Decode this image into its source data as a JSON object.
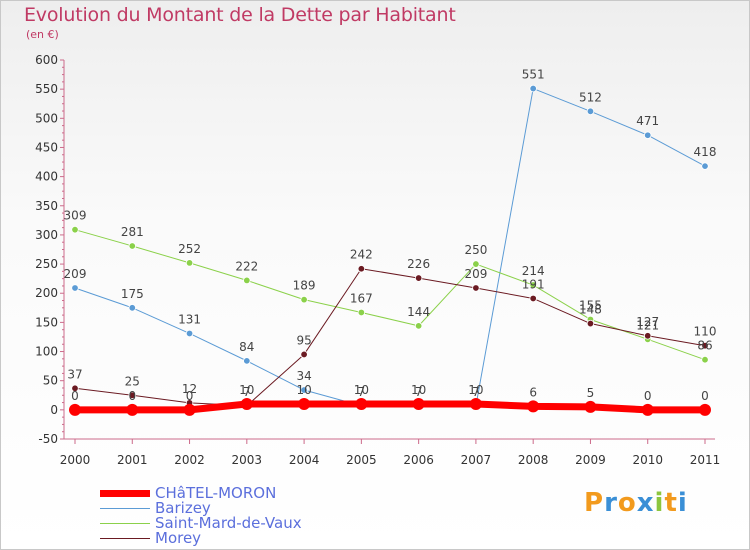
{
  "header": {
    "title": "Evolution du Montant de la Dette par Habitant",
    "unit": "(en €)"
  },
  "logo": {
    "letters": [
      "P",
      "r",
      "o",
      "x",
      "i",
      "t",
      "i"
    ],
    "colors": [
      "#f29a1d",
      "#3a8fd6",
      "#f29a1d",
      "#3a8fd6",
      "#8cc63f",
      "#f29a1d",
      "#3a8fd6"
    ]
  },
  "chart_data": {
    "type": "line",
    "x": [
      "2000",
      "2001",
      "2002",
      "2003",
      "2004",
      "2005",
      "2006",
      "2007",
      "2008",
      "2009",
      "2010",
      "2011"
    ],
    "ylim": [
      -50,
      600
    ],
    "yticks": [
      "600",
      "550",
      "500",
      "450",
      "400",
      "350",
      "300",
      "250",
      "200",
      "150",
      "100",
      "50",
      "0",
      "-50"
    ],
    "grid": false,
    "legend_position": "bottom-left",
    "series": [
      {
        "name": "CHâTEL-MORON",
        "color": "#ff0000",
        "width": 7,
        "values": [
          0,
          0,
          0,
          10,
          10,
          10,
          10,
          10,
          6,
          5,
          0,
          0
        ],
        "labels": [
          "0",
          "0",
          "0",
          "10",
          "10",
          "10",
          "10",
          "10",
          "6",
          "5",
          "0",
          "0"
        ]
      },
      {
        "name": "Barizey",
        "color": "#5b9bd5",
        "width": 1,
        "values": [
          209,
          175,
          131,
          84,
          34,
          7,
          7,
          7,
          551,
          512,
          471,
          418
        ],
        "labels": [
          "209",
          "175",
          "131",
          "84",
          "34",
          "7",
          "7",
          "7",
          "551",
          "512",
          "471",
          "418"
        ]
      },
      {
        "name": "Saint-Mard-de-Vaux",
        "color": "#8bd14a",
        "width": 1,
        "values": [
          309,
          281,
          252,
          222,
          189,
          167,
          144,
          250,
          214,
          155,
          121,
          86
        ],
        "labels": [
          "309",
          "281",
          "252",
          "222",
          "189",
          "167",
          "144",
          "250",
          "214",
          "155",
          "121",
          "86"
        ]
      },
      {
        "name": "Morey",
        "color": "#6b1a22",
        "width": 1,
        "values": [
          37,
          25,
          12,
          7,
          95,
          242,
          226,
          209,
          191,
          148,
          127,
          110
        ],
        "labels": [
          "37",
          "25",
          "12",
          "7",
          "95",
          "242",
          "226",
          "209",
          "191",
          "148",
          "127",
          "110"
        ]
      }
    ]
  }
}
